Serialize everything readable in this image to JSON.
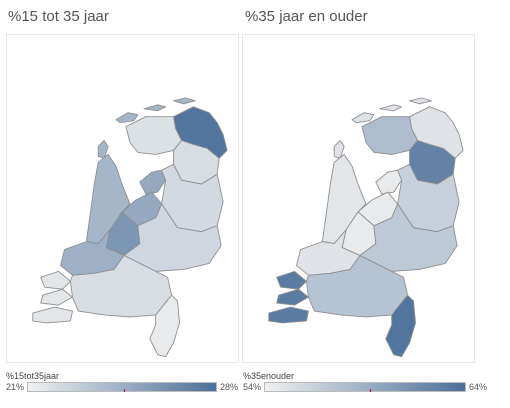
{
  "left": {
    "title": "%15 tot 35 jaar",
    "legend_title": "%15tot35jaar",
    "legend_min": "21%",
    "legend_max": "28%",
    "color_low": "#f0f0f0",
    "color_high": "#4a6f99",
    "regions": {
      "groningen": 0.95,
      "friesland": 0.12,
      "drenthe": 0.15,
      "overijssel": 0.18,
      "flevoland": 0.55,
      "gelderland": 0.2,
      "utrecht": 0.7,
      "noord-holland": 0.45,
      "zuid-holland": 0.5,
      "zeeland": 0.08,
      "noord-brabant": 0.15,
      "limburg": 0.05,
      "wadden": 0.45
    }
  },
  "right": {
    "title": "%35 jaar en ouder",
    "legend_title": "%35enouder",
    "legend_min": "54%",
    "legend_max": "64%",
    "color_low": "#f0f0f0",
    "color_high": "#4a6f99",
    "regions": {
      "groningen": 0.1,
      "friesland": 0.4,
      "drenthe": 0.85,
      "overijssel": 0.25,
      "flevoland": 0.05,
      "gelderland": 0.3,
      "utrecht": 0.05,
      "noord-holland": 0.08,
      "zuid-holland": 0.1,
      "zeeland": 0.9,
      "noord-brabant": 0.35,
      "limburg": 0.95,
      "wadden": 0.1
    }
  }
}
